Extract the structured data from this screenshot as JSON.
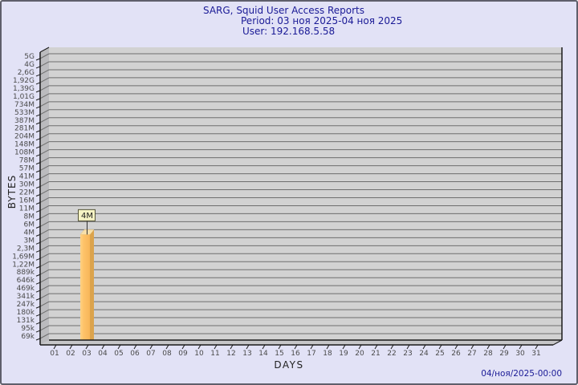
{
  "title": {
    "line1": "SARG, Squid User Access Reports",
    "line2": "Period: 03 ноя 2025-04 ноя 2025",
    "line3": "User: 192.168.5.58"
  },
  "y_axis": {
    "label": "BYTES",
    "ticks": [
      "5G",
      "4G",
      "2,6G",
      "1,92G",
      "1,39G",
      "1,01G",
      "734M",
      "533M",
      "387M",
      "281M",
      "204M",
      "148M",
      "108M",
      "78M",
      "57M",
      "41M",
      "30M",
      "22M",
      "16M",
      "11M",
      "8M",
      "6M",
      "4M",
      "3M",
      "2,3M",
      "1,69M",
      "1,22M",
      "889k",
      "646k",
      "469k",
      "341k",
      "247k",
      "180k",
      "131k",
      "95k",
      "69k"
    ]
  },
  "x_axis": {
    "label": "DAYS",
    "ticks": [
      "01",
      "02",
      "03",
      "04",
      "05",
      "06",
      "07",
      "08",
      "09",
      "10",
      "11",
      "12",
      "13",
      "14",
      "15",
      "16",
      "17",
      "18",
      "19",
      "20",
      "21",
      "22",
      "23",
      "24",
      "25",
      "26",
      "27",
      "28",
      "29",
      "30",
      "31"
    ]
  },
  "footer": {
    "timestamp": "04/ноя/2025-00:00"
  },
  "chart_data": {
    "type": "bar",
    "title": "SARG, Squid User Access Reports",
    "subtitle": "Period: 03 ноя 2025-04 ноя 2025",
    "user": "192.168.5.58",
    "xlabel": "DAYS",
    "ylabel": "BYTES",
    "y_scale": "log",
    "y_tick_labels": [
      "5G",
      "4G",
      "2,6G",
      "1,92G",
      "1,39G",
      "1,01G",
      "734M",
      "533M",
      "387M",
      "281M",
      "204M",
      "148M",
      "108M",
      "78M",
      "57M",
      "41M",
      "30M",
      "22M",
      "16M",
      "11M",
      "8M",
      "6M",
      "4M",
      "3M",
      "2,3M",
      "1,69M",
      "1,22M",
      "889k",
      "646k",
      "469k",
      "341k",
      "247k",
      "180k",
      "131k",
      "95k",
      "69k"
    ],
    "categories": [
      "01",
      "02",
      "03",
      "04",
      "05",
      "06",
      "07",
      "08",
      "09",
      "10",
      "11",
      "12",
      "13",
      "14",
      "15",
      "16",
      "17",
      "18",
      "19",
      "20",
      "21",
      "22",
      "23",
      "24",
      "25",
      "26",
      "27",
      "28",
      "29",
      "30",
      "31"
    ],
    "values": [
      0,
      0,
      4000000,
      0,
      0,
      0,
      0,
      0,
      0,
      0,
      0,
      0,
      0,
      0,
      0,
      0,
      0,
      0,
      0,
      0,
      0,
      0,
      0,
      0,
      0,
      0,
      0,
      0,
      0,
      0,
      0
    ],
    "value_labels": [
      "",
      "",
      "4M",
      "",
      "",
      "",
      "",
      "",
      "",
      "",
      "",
      "",
      "",
      "",
      "",
      "",
      "",
      "",
      "",
      "",
      "",
      "",
      "",
      "",
      "",
      "",
      "",
      "",
      "",
      "",
      ""
    ],
    "grid": "horizontal",
    "legend": "none",
    "timestamp": "04/ноя/2025-00:00"
  },
  "colors": {
    "background": "#E2E2F6",
    "border": "#5F5F6B",
    "title_text": "#1A1A96",
    "plot_bg": "#D2D2D2",
    "gridline": "#6E6E6E",
    "wall": "#BBBBBE",
    "floor": "#C6C6C8",
    "axis": "#1A1A1A",
    "tick_text": "#4A4A4A",
    "bar_front": "#FEC369",
    "bar_front_hi": "#FFD183",
    "bar_side": "#DBA34C",
    "bar_top": "#F7DFA9",
    "bar_label_bg": "#F6F3C4",
    "bar_label_border": "#55553A"
  }
}
